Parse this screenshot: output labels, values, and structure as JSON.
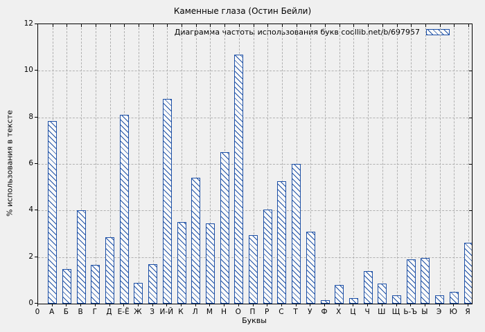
{
  "chart_data": {
    "type": "bar",
    "title": "Каменные глаза (Остин Бейли)",
    "legend": "Диаграмма частоты использования букв coollib.net/b/697957",
    "legend_position": "top-right",
    "xlabel": "Буквы",
    "ylabel": "% использования в тексте",
    "x_origin_label": "0",
    "ylim": [
      0,
      12
    ],
    "yticks": [
      0,
      2,
      4,
      6,
      8,
      10,
      12
    ],
    "grid": true,
    "categories": [
      "А",
      "Б",
      "В",
      "Г",
      "Д",
      "Е-Ё",
      "Ж",
      "З",
      "И-Й",
      "К",
      "Л",
      "М",
      "Н",
      "О",
      "П",
      "Р",
      "С",
      "Т",
      "У",
      "Ф",
      "Х",
      "Ц",
      "Ч",
      "Ш",
      "Щ",
      "Ь-Ъ",
      "Ы",
      "Э",
      "Ю",
      "Я"
    ],
    "values": [
      7.85,
      1.5,
      4.0,
      1.65,
      2.85,
      8.1,
      0.9,
      1.7,
      8.8,
      3.5,
      5.4,
      3.45,
      6.5,
      10.7,
      2.95,
      4.05,
      5.25,
      6.0,
      3.1,
      0.15,
      0.8,
      0.25,
      1.4,
      0.85,
      0.35,
      1.9,
      1.95,
      0.35,
      0.5,
      2.6
    ],
    "bar_color": "#1c4fa5",
    "bar_fill": "#fafafa",
    "background": "#f0f0f0",
    "grid_color": "#b0b0b0",
    "hatch": "diagonal-backslash"
  }
}
